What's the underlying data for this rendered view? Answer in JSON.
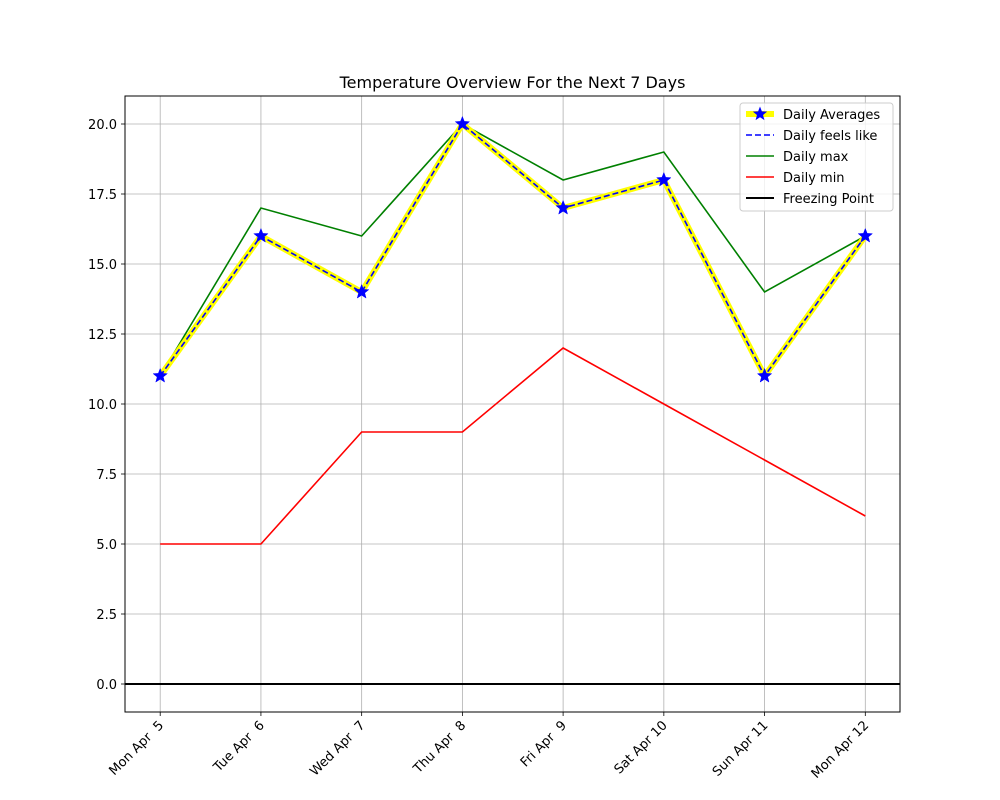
{
  "chart_data": {
    "type": "line",
    "title": "Temperature Overview For the Next 7 Days",
    "xlabel": "",
    "ylabel": "",
    "categories": [
      "Mon Apr  5",
      "Tue Apr  6",
      "Wed Apr  7",
      "Thu Apr  8",
      "Fri Apr  9",
      "Sat Apr 10",
      "Sun Apr 11",
      "Mon Apr 12"
    ],
    "ylim": [
      -1,
      21
    ],
    "yticks": [
      0.0,
      2.5,
      5.0,
      7.5,
      10.0,
      12.5,
      15.0,
      17.5,
      20.0
    ],
    "ytick_labels": [
      "0.0",
      "2.5",
      "5.0",
      "7.5",
      "10.0",
      "12.5",
      "15.0",
      "17.5",
      "20.0"
    ],
    "grid": true,
    "legend_position": "top-right",
    "series": [
      {
        "name": "Daily Averages",
        "values": [
          11,
          16,
          14,
          20,
          17,
          18,
          11,
          16
        ],
        "color": "#ffff00",
        "marker_color": "#0000ff",
        "style": "thick-star"
      },
      {
        "name": "Daily feels like",
        "values": [
          11,
          16,
          14,
          20,
          17,
          18,
          11,
          16
        ],
        "color": "#0000ff",
        "style": "dashed"
      },
      {
        "name": "Daily max",
        "values": [
          11,
          17,
          16,
          20,
          18,
          19,
          14,
          16
        ],
        "color": "#008000",
        "style": "solid"
      },
      {
        "name": "Daily min",
        "values": [
          5,
          5,
          9,
          9,
          12,
          10,
          8,
          6
        ],
        "color": "#ff0000",
        "style": "solid"
      }
    ],
    "reference_lines": [
      {
        "name": "Freezing Point",
        "value": 0,
        "color": "#000000"
      }
    ]
  }
}
